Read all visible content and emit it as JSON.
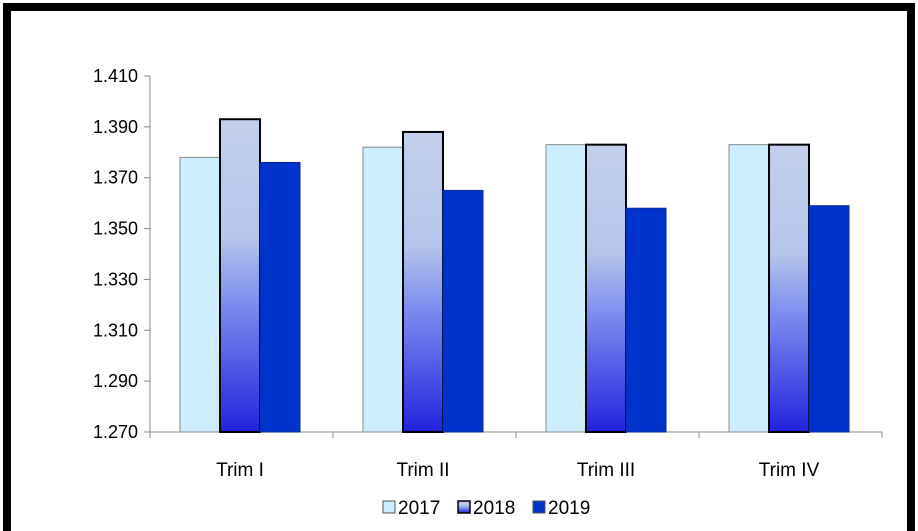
{
  "chart_data": {
    "type": "bar",
    "categories": [
      "Trim I",
      "Trim II",
      "Trim III",
      "Trim IV"
    ],
    "series": [
      {
        "name": "2017",
        "values": [
          1.378,
          1.382,
          1.383,
          1.383
        ],
        "color": "#cceeff"
      },
      {
        "name": "2018",
        "values": [
          1.393,
          1.388,
          1.383,
          1.383
        ],
        "color": "#b7c8ea"
      },
      {
        "name": "2019",
        "values": [
          1.376,
          1.365,
          1.358,
          1.359
        ],
        "color": "#0033cc"
      }
    ],
    "ylim": [
      1.27,
      1.41
    ],
    "yticks": [
      "1.270",
      "1.290",
      "1.310",
      "1.330",
      "1.350",
      "1.370",
      "1.390",
      "1.410"
    ],
    "ytick_values": [
      1.27,
      1.29,
      1.31,
      1.33,
      1.35,
      1.37,
      1.39,
      1.41
    ],
    "title": "",
    "xlabel": "",
    "ylabel": "",
    "legend_position": "bottom",
    "grid": false
  }
}
